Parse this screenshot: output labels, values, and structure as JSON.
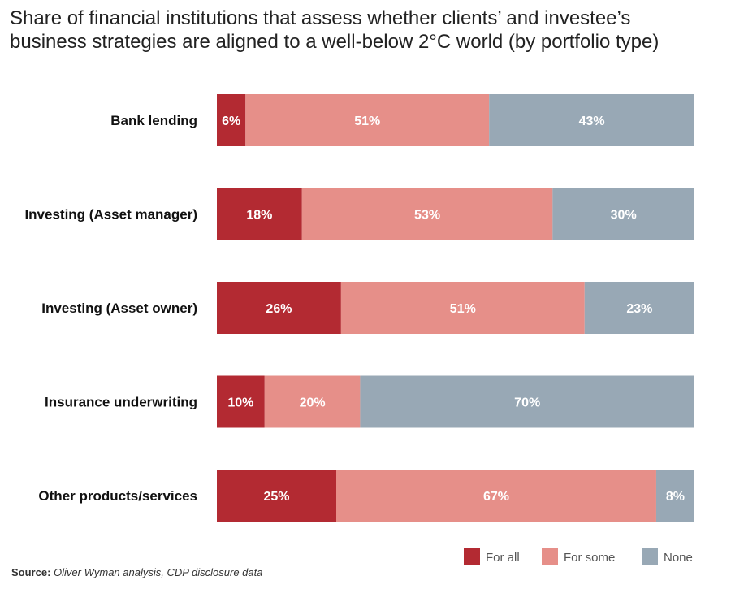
{
  "chart_data": {
    "type": "bar",
    "stacked": true,
    "orientation": "horizontal",
    "title": "Share of financial institutions that assess whether clients’ and investee’s business strategies are aligned to a well-below 2°C world (by portfolio type)",
    "categories": [
      "Bank lending",
      "Investing (Asset manager)",
      "Investing (Asset owner)",
      "Insurance underwriting",
      "Other products/services"
    ],
    "series": [
      {
        "name": "For all",
        "color": "#b32a32",
        "values": [
          6,
          18,
          26,
          10,
          25
        ]
      },
      {
        "name": "For some",
        "color": "#e68f89",
        "values": [
          51,
          53,
          51,
          20,
          67
        ]
      },
      {
        "name": "None",
        "color": "#98a8b5",
        "values": [
          43,
          30,
          23,
          70,
          8
        ]
      }
    ],
    "value_suffix": "%",
    "legend_position": "bottom-right",
    "grid": false
  },
  "source": {
    "label": "Source:",
    "text": "Oliver Wyman analysis, CDP disclosure data"
  }
}
